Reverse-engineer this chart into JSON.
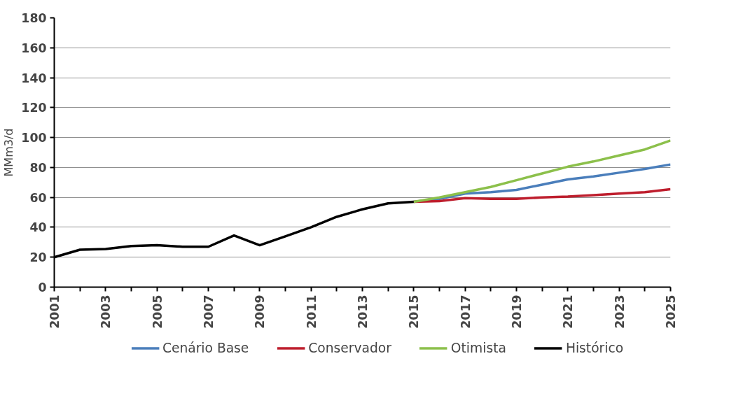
{
  "chart_data": {
    "type": "line",
    "ylabel": "MMm3/d",
    "xlim": [
      2001,
      2025
    ],
    "xticks": [
      2001,
      {
        "value": 2002,
        "label": null
      },
      2003,
      {
        "value": 2004,
        "label": null
      },
      2005,
      {
        "value": 2006,
        "label": null
      },
      2007,
      {
        "value": 2008,
        "label": null
      },
      2009,
      {
        "value": 2010,
        "label": null
      },
      2011,
      {
        "value": 2012,
        "label": null
      },
      2013,
      {
        "value": 2014,
        "label": null
      },
      2015,
      {
        "value": 2016,
        "label": null
      },
      2017,
      {
        "value": 2018,
        "label": null
      },
      2019,
      {
        "value": 2020,
        "label": null
      },
      2021,
      {
        "value": 2022,
        "label": null
      },
      2023,
      {
        "value": 2024,
        "label": null
      },
      2025
    ],
    "ylim": [
      0,
      180
    ],
    "yticks": [
      0,
      20,
      40,
      60,
      80,
      100,
      120,
      140,
      160,
      180
    ],
    "grid": "y",
    "legend": "bottom",
    "marker": "none",
    "line_style": "solid",
    "series": [
      {
        "name": "Cenário Base",
        "color": "#4a7ebb",
        "x": [
          2015,
          2016,
          2017,
          2018,
          2019,
          2020,
          2021,
          2022,
          2023,
          2024,
          2025
        ],
        "values": [
          57,
          59,
          62.5,
          63.5,
          65,
          68.5,
          72,
          74,
          76.5,
          79,
          82
        ]
      },
      {
        "name": "Conservador",
        "color": "#be1e2d",
        "x": [
          2015,
          2016,
          2017,
          2018,
          2019,
          2020,
          2021,
          2022,
          2023,
          2024,
          2025
        ],
        "values": [
          57,
          57.5,
          59.5,
          59,
          59,
          60,
          60.5,
          61.5,
          62.5,
          63.5,
          65.5
        ]
      },
      {
        "name": "Otimista",
        "color": "#8cc04b",
        "x": [
          2015,
          2016,
          2017,
          2018,
          2019,
          2020,
          2021,
          2022,
          2023,
          2024,
          2025
        ],
        "values": [
          57,
          60,
          63.5,
          67,
          71.5,
          76,
          80.5,
          84,
          88,
          92,
          98
        ]
      },
      {
        "name": "Histórico",
        "color": "#000000",
        "x": [
          2001,
          2002,
          2003,
          2004,
          2005,
          2006,
          2007,
          2008,
          2009,
          2010,
          2011,
          2012,
          2013,
          2014,
          2015
        ],
        "values": [
          20,
          25,
          25.5,
          27.5,
          28,
          27,
          27,
          34.5,
          28,
          34,
          40,
          47,
          52,
          56,
          57
        ]
      }
    ]
  }
}
